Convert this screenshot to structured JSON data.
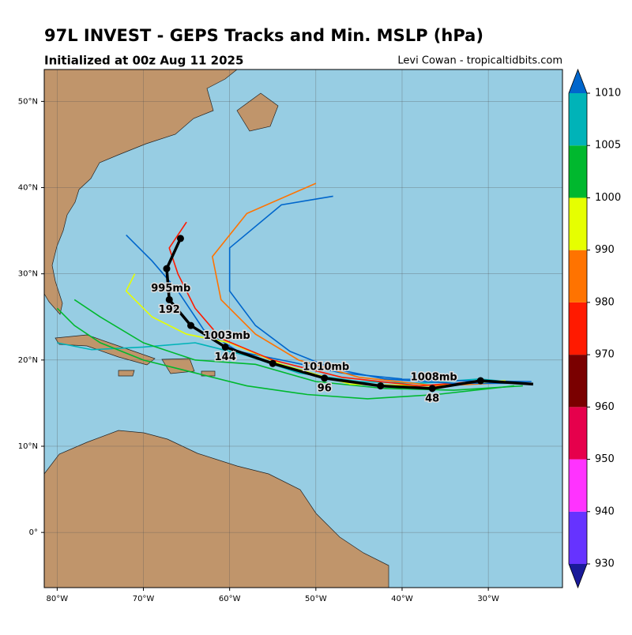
{
  "chart_data": {
    "type": "track-map",
    "title": "97L INVEST - GEPS Tracks and Min. MSLP (hPa)",
    "subtitle": "Initialized at 00z Aug 11 2025",
    "credit": "Levi Cowan - tropicaltidbits.com",
    "xlim": [
      -81.5,
      -21.4
    ],
    "ylim": [
      -6.4,
      53.7
    ],
    "xticks": [
      {
        "value": -80,
        "label": "80°W"
      },
      {
        "value": -70,
        "label": "70°W"
      },
      {
        "value": -60,
        "label": "60°W"
      },
      {
        "value": -50,
        "label": "50°W"
      },
      {
        "value": -40,
        "label": "40°W"
      },
      {
        "value": -30,
        "label": "30°W"
      }
    ],
    "yticks": [
      {
        "value": 0,
        "label": "0°"
      },
      {
        "value": 10,
        "label": "10°N"
      },
      {
        "value": 20,
        "label": "20°N"
      },
      {
        "value": 30,
        "label": "30°N"
      },
      {
        "value": 40,
        "label": "40°N"
      },
      {
        "value": 50,
        "label": "50°N"
      }
    ],
    "grid": true,
    "colorbar": {
      "ticks": [
        930,
        940,
        950,
        960,
        970,
        980,
        990,
        1000,
        1005,
        1010
      ],
      "colors": [
        "#1a1a99",
        "#6633ff",
        "#ff33ff",
        "#e6004c",
        "#7a0000",
        "#ff1a00",
        "#ff7300",
        "#e6ff00",
        "#00b82e",
        "#00b3b8",
        "#0066cc"
      ]
    },
    "members": [
      {
        "color": "#00b3b8",
        "lon": [
          -25,
          -31,
          -38,
          -45,
          -52,
          -58,
          -64,
          -70,
          -76,
          -80
        ],
        "lat": [
          17.2,
          17.8,
          17.3,
          17.5,
          18.5,
          20.5,
          22,
          21.5,
          21.2,
          22
        ]
      },
      {
        "color": "#0066cc",
        "lon": [
          -25,
          -33,
          -40,
          -47,
          -53,
          -59,
          -63,
          -66,
          -69,
          -72
        ],
        "lat": [
          17.5,
          17.6,
          17.8,
          18.5,
          19.8,
          21,
          23.5,
          28,
          31.5,
          34.5
        ]
      },
      {
        "color": "#00b82e",
        "lon": [
          -26,
          -34,
          -42,
          -50,
          -57,
          -64,
          -70,
          -75,
          -78
        ],
        "lat": [
          17,
          16.5,
          16.7,
          17.5,
          19.5,
          20,
          22,
          25,
          27
        ]
      },
      {
        "color": "#e6ff00",
        "lon": [
          -28,
          -37,
          -46,
          -54,
          -60,
          -65,
          -69,
          -72,
          -71
        ],
        "lat": [
          17.6,
          17,
          17.2,
          19.5,
          22,
          23,
          25,
          28,
          30
        ]
      },
      {
        "color": "#ff7300",
        "lon": [
          -27,
          -36,
          -45,
          -52,
          -57,
          -61,
          -62,
          -58,
          -50
        ],
        "lat": [
          17.4,
          17,
          18,
          20,
          23,
          27,
          32,
          37,
          40.5
        ]
      },
      {
        "color": "#ff1a00",
        "lon": [
          -30,
          -38,
          -47,
          -55,
          -61,
          -64,
          -66,
          -67,
          -65
        ],
        "lat": [
          17.6,
          17,
          18,
          20,
          22.5,
          26,
          30,
          33,
          36
        ]
      },
      {
        "color": "#0066cc",
        "lon": [
          -26,
          -34,
          -42,
          -48,
          -53,
          -57,
          -60,
          -60,
          -54,
          -48
        ],
        "lat": [
          17.3,
          17.3,
          17.8,
          19,
          21,
          24,
          28,
          33,
          38,
          39
        ]
      },
      {
        "color": "#00b82e",
        "lon": [
          -27,
          -36,
          -44,
          -51,
          -58,
          -64,
          -70,
          -75,
          -78,
          -80
        ],
        "lat": [
          17,
          16,
          15.5,
          16,
          17,
          18.5,
          20,
          22,
          24,
          26
        ]
      }
    ],
    "mean_track": {
      "color": "#000000",
      "lon": [
        -24.8,
        -30.9,
        -36.5,
        -42.5,
        -49,
        -55,
        -60.5,
        -64.5,
        -67,
        -67.3,
        -65.7
      ],
      "lat": [
        17.2,
        17.6,
        16.7,
        17,
        17.9,
        19.6,
        21.5,
        24,
        27,
        30.6,
        34.1
      ],
      "labels": [
        {
          "index": 2,
          "hour": 48,
          "pressure": "1008mb"
        },
        {
          "index": 4,
          "hour": 96,
          "pressure": "1010mb"
        },
        {
          "index": 6,
          "hour": 144,
          "pressure": "1003mb"
        },
        {
          "index": 8,
          "hour": 192,
          "pressure": "995mb"
        }
      ]
    }
  }
}
